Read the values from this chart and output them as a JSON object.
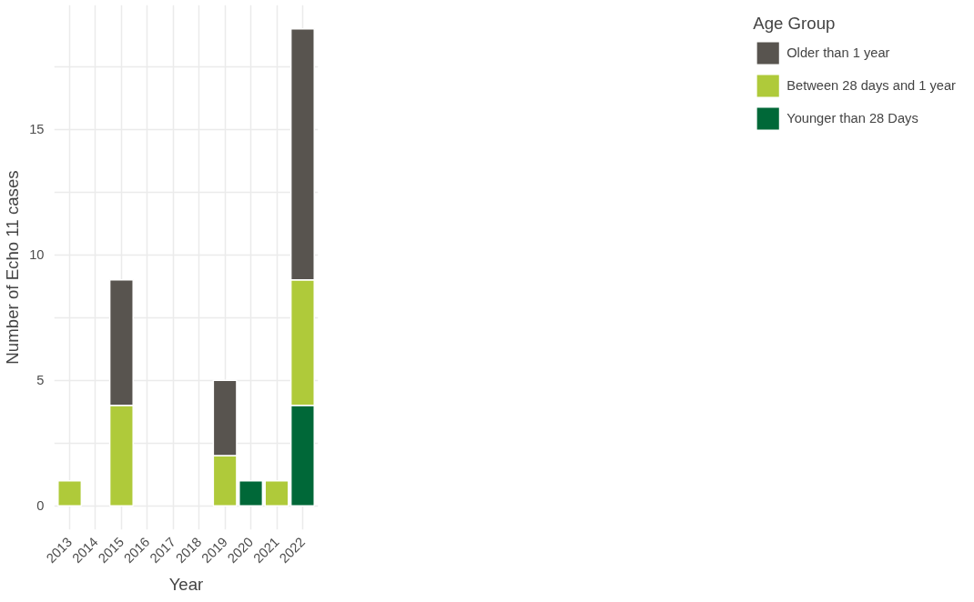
{
  "chart_data": {
    "type": "bar",
    "stacked": true,
    "xlabel": "Year",
    "ylabel": "Number of Echo 11 cases",
    "legend_title": "Age Group",
    "categories": [
      "2013",
      "2014",
      "2015",
      "2016",
      "2017",
      "2018",
      "2019",
      "2020",
      "2021",
      "2022"
    ],
    "series": [
      {
        "name": "Younger than 28 Days",
        "color": "#006838",
        "values": [
          null,
          null,
          null,
          null,
          null,
          null,
          null,
          1,
          null,
          4
        ]
      },
      {
        "name": "Between 28 days and 1 year",
        "color": "#afca3a",
        "values": [
          1,
          null,
          4,
          null,
          null,
          null,
          2,
          null,
          1,
          5
        ]
      },
      {
        "name": "Older than 1 year",
        "color": "#58544f",
        "values": [
          null,
          null,
          5,
          null,
          null,
          null,
          3,
          null,
          null,
          10
        ]
      }
    ],
    "ylim": [
      -0.95,
      19.95
    ],
    "yticks": [
      0,
      {
        "value": 2.5,
        "label": null
      },
      5,
      {
        "value": 7.5,
        "label": null
      },
      10,
      {
        "value": 12.5,
        "label": null
      },
      15,
      {
        "value": 17.5,
        "label": null
      }
    ],
    "grid": true,
    "legend": "right"
  }
}
